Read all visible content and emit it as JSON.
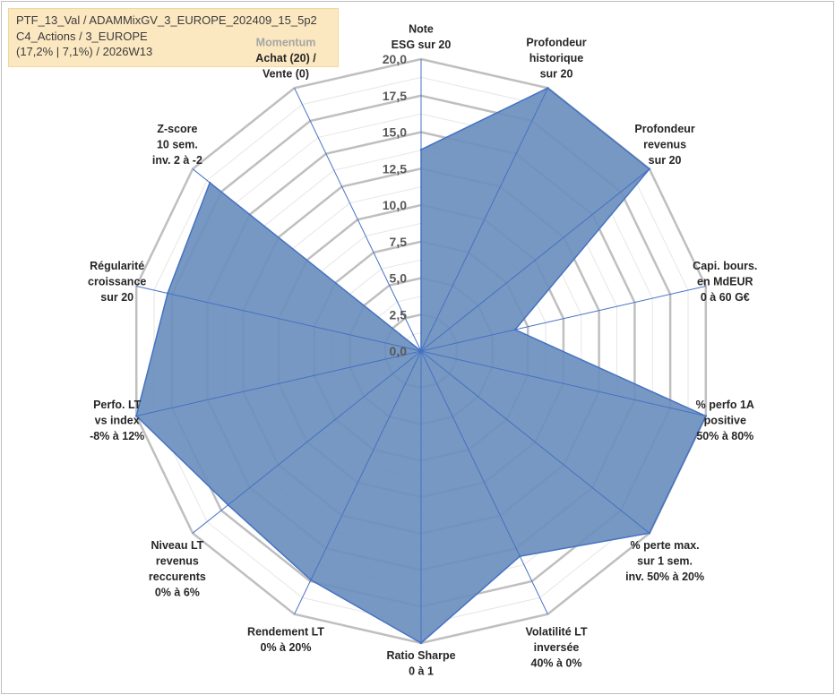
{
  "info_box": {
    "line1": "PTF_13_Val / ADAMMixGV_3_EUROPE_202409_15_5p2",
    "line2": "C4_Actions / 3_EUROPE",
    "line3": "(17,2% | 7,1%) / 2026W13"
  },
  "colors": {
    "fill": "#6b8fbd",
    "stroke": "#4472c4",
    "grid_major": "#bfbfbf",
    "grid_minor": "#e6e6e6",
    "spoke": "#4472c4",
    "info_bg": "#fce8c0"
  },
  "chart_data": {
    "type": "radar",
    "title": "",
    "range": [
      0,
      20
    ],
    "major_ticks": [
      0,
      2.5,
      5,
      7.5,
      10,
      12.5,
      15,
      17.5,
      20
    ],
    "tick_labels": [
      "0,0",
      "2,5",
      "5,0",
      "7,5",
      "10,0",
      "12,5",
      "15,0",
      "17,5",
      "20,0"
    ],
    "minor_step": 1.25,
    "axes": [
      {
        "label": [
          "Note",
          "ESG sur 20"
        ],
        "value": 13.8
      },
      {
        "label": [
          "Profondeur",
          "historique",
          "sur 20"
        ],
        "value": 20
      },
      {
        "label": [
          "Profondeur",
          "revenus",
          "sur 20"
        ],
        "value": 20
      },
      {
        "label": [
          "Capi. bours.",
          "en MdEUR",
          "0 à 60 G€"
        ],
        "value": 6.6
      },
      {
        "label": [
          "% perfo 1A",
          "positive",
          "50% à 80%"
        ],
        "value": 20
      },
      {
        "label": [
          "% perte max.",
          "sur 1 sem.",
          "inv. 50% à 20%"
        ],
        "value": 20
      },
      {
        "label": [
          "Volatilité LT",
          "inversée",
          "40% à 0%"
        ],
        "value": 15.6
      },
      {
        "label": [
          "Ratio Sharpe",
          "0 à 1"
        ],
        "value": 20
      },
      {
        "label": [
          "Rendement LT",
          "0% à 20%"
        ],
        "value": 17.4
      },
      {
        "label": [
          "Niveau LT",
          "revenus",
          "reccurents",
          "0% à 6%"
        ],
        "value": 16.9
      },
      {
        "label": [
          "Perfo. LT",
          "vs index",
          "-8% à 12%"
        ],
        "value": 20
      },
      {
        "label": [
          "Régularité",
          "croissance",
          "sur 20"
        ],
        "value": 17.8
      },
      {
        "label": [
          "Z-score",
          "10 sem.",
          "inv. 2 à -2"
        ],
        "value": 18.5
      },
      {
        "label": [
          "Momentum",
          "Achat (20) /",
          "Vente (0)"
        ],
        "value": 0
      }
    ]
  }
}
